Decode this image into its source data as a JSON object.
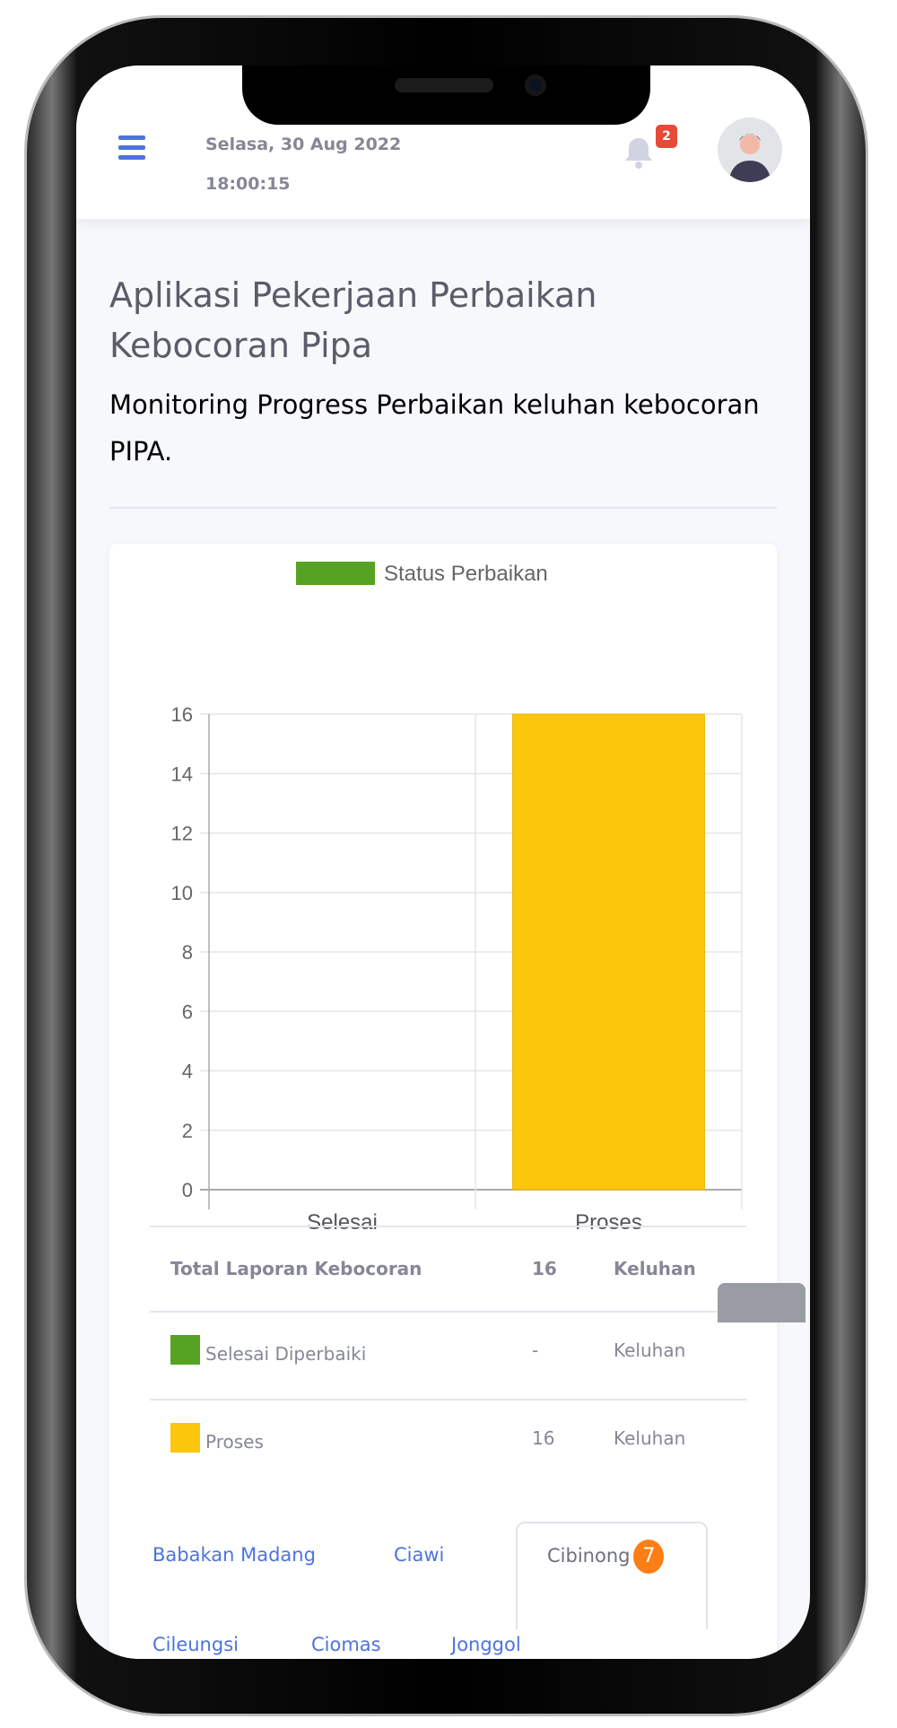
{
  "header": {
    "date": "Selasa, 30 Aug 2022",
    "time": "18:00:15",
    "notification_count": "2"
  },
  "page": {
    "title": "Aplikasi Pekerjaan Perbaikan Kebocoran Pipa",
    "subtitle": "Monitoring Progress Perbaikan keluhan kebocoran PIPA."
  },
  "chart_data": {
    "type": "bar",
    "categories": [
      "Selesai",
      "Proses"
    ],
    "series": [
      {
        "name": "Status Perbaikan",
        "values": [
          0,
          16
        ],
        "colors": [
          "#56a323",
          "#fcc60d"
        ]
      }
    ],
    "legend_color": "#56a323",
    "ylim": [
      0,
      16
    ],
    "yticks": [
      0,
      2,
      4,
      6,
      8,
      10,
      12,
      14,
      16
    ],
    "grid": true,
    "legend": "top"
  },
  "summary": {
    "total": {
      "label": "Total Laporan Kebocoran",
      "value": "16",
      "unit": "Keluhan"
    },
    "rows": [
      {
        "label": "Selesai Diperbaiki",
        "value": "-",
        "unit": "Keluhan",
        "color": "#56a323"
      },
      {
        "label": "Proses",
        "value": "16",
        "unit": "Keluhan",
        "color": "#fcc60d"
      }
    ]
  },
  "tabs": [
    {
      "label": "Babakan Madang"
    },
    {
      "label": "Ciawi"
    },
    {
      "label": "Cibinong",
      "count": "7",
      "active": true
    },
    {
      "label": "Cileungsi"
    },
    {
      "label": "Ciomas"
    },
    {
      "label": "Jonggol"
    }
  ]
}
